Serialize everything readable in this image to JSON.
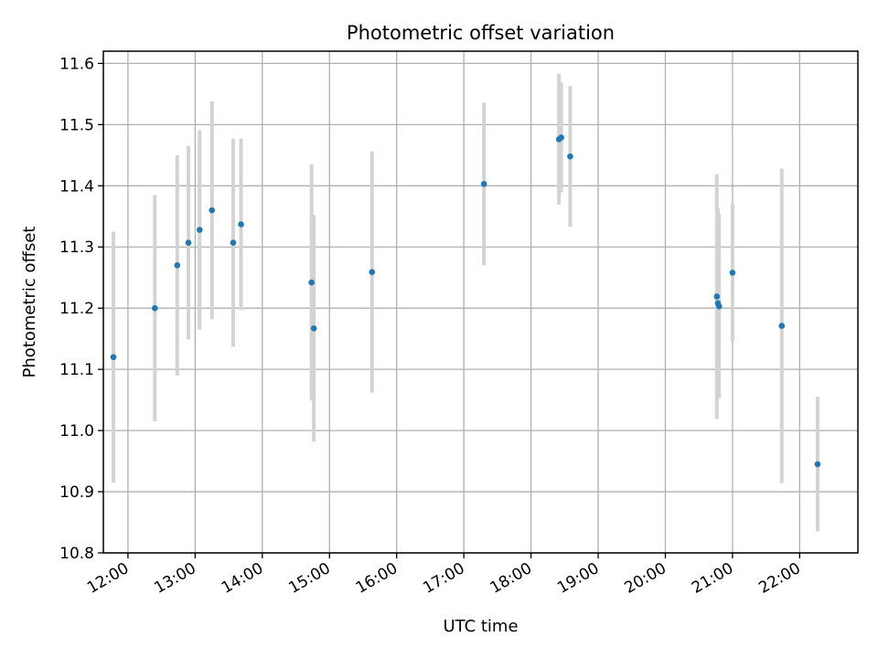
{
  "chart_data": {
    "type": "scatter",
    "title": "Photometric offset variation",
    "xlabel": "UTC time",
    "ylabel": "Photometric offset",
    "grid": true,
    "xlim": [
      "11:38",
      "22:52"
    ],
    "ylim": [
      10.8,
      11.62
    ],
    "x_ticks": [
      "12:00",
      "13:00",
      "14:00",
      "15:00",
      "16:00",
      "17:00",
      "18:00",
      "19:00",
      "20:00",
      "21:00",
      "22:00"
    ],
    "y_ticks": [
      "10.8",
      "10.9",
      "11.0",
      "11.1",
      "11.2",
      "11.3",
      "11.4",
      "11.5",
      "11.6"
    ],
    "colors": {
      "point": "#1f77b4",
      "errorbar": "#d3d3d3",
      "grid": "#b0b0b0"
    },
    "series": [
      {
        "points": [
          {
            "x": "11:47",
            "y": 11.12,
            "err": 0.205
          },
          {
            "x": "12:24",
            "y": 11.2,
            "err": 0.185
          },
          {
            "x": "12:44",
            "y": 11.27,
            "err": 0.18
          },
          {
            "x": "12:54",
            "y": 11.307,
            "err": 0.158
          },
          {
            "x": "13:04",
            "y": 11.328,
            "err": 0.163
          },
          {
            "x": "13:15",
            "y": 11.36,
            "err": 0.178
          },
          {
            "x": "13:34",
            "y": 11.307,
            "err": 0.17
          },
          {
            "x": "13:41",
            "y": 11.337,
            "err": 0.14
          },
          {
            "x": "14:44",
            "y": 11.242,
            "err": 0.193
          },
          {
            "x": "14:46",
            "y": 11.167,
            "err": 0.185
          },
          {
            "x": "15:38",
            "y": 11.259,
            "err": 0.197
          },
          {
            "x": "17:18",
            "y": 11.403,
            "err": 0.133
          },
          {
            "x": "18:25",
            "y": 11.476,
            "err": 0.107
          },
          {
            "x": "18:27",
            "y": 11.479,
            "err": 0.09
          },
          {
            "x": "18:35",
            "y": 11.448,
            "err": 0.115
          },
          {
            "x": "20:46",
            "y": 11.219,
            "err": 0.2
          },
          {
            "x": "20:47",
            "y": 11.208,
            "err": 0.155
          },
          {
            "x": "20:48",
            "y": 11.203,
            "err": 0.15
          },
          {
            "x": "21:00",
            "y": 11.258,
            "err": 0.113
          },
          {
            "x": "21:44",
            "y": 11.171,
            "err": 0.257
          },
          {
            "x": "22:16",
            "y": 10.945,
            "err": 0.11
          }
        ]
      }
    ]
  }
}
